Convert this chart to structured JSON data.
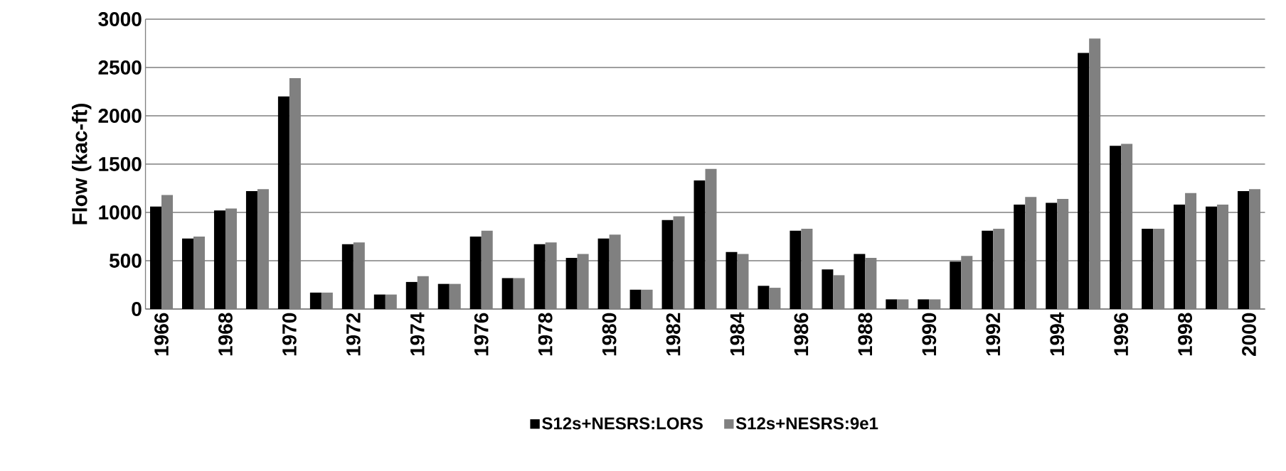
{
  "chart_data": {
    "type": "bar",
    "ylabel": "Flow (kac-ft)",
    "categories": [
      "1966",
      null,
      "1968",
      null,
      "1970",
      null,
      "1972",
      null,
      "1974",
      null,
      "1976",
      null,
      "1978",
      null,
      "1980",
      null,
      "1982",
      null,
      "1984",
      null,
      "1986",
      null,
      "1988",
      null,
      "1990",
      null,
      "1992",
      null,
      "1994",
      null,
      "1996",
      null,
      "1998",
      null,
      "2000"
    ],
    "series": [
      {
        "name": "S12s+NESRS:LORS",
        "color": "#000000",
        "values": [
          1060,
          730,
          1020,
          1220,
          2200,
          170,
          670,
          150,
          280,
          260,
          750,
          320,
          670,
          530,
          730,
          200,
          920,
          1330,
          590,
          240,
          810,
          410,
          570,
          100,
          100,
          490,
          810,
          1080,
          1100,
          2650,
          1690,
          830,
          1080,
          1060,
          1220
        ]
      },
      {
        "name": "S12s+NESRS:9e1",
        "color": "#808080",
        "values": [
          1180,
          750,
          1040,
          1240,
          2390,
          170,
          690,
          150,
          340,
          260,
          810,
          320,
          690,
          570,
          770,
          200,
          960,
          1450,
          570,
          220,
          830,
          350,
          530,
          100,
          100,
          550,
          830,
          1160,
          1140,
          2800,
          1710,
          830,
          1200,
          1080,
          1240
        ]
      }
    ],
    "ylim": [
      0,
      3000
    ],
    "yticks": [
      0,
      500,
      1000,
      1500,
      2000,
      2500,
      3000
    ],
    "grid": "y",
    "legend": "bottom"
  }
}
